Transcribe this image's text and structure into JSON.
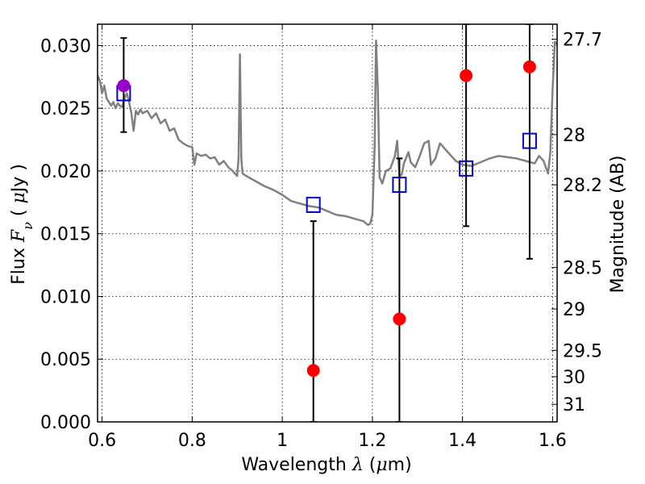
{
  "chart_data": {
    "type": "scatter",
    "xlabel": "Wavelength  λ (μm)",
    "ylabel": "Flux  Fν  ( μJy )",
    "ylabel_right": "Magnitude (AB)",
    "xlim": [
      0.59,
      1.61
    ],
    "ylim": [
      0.0,
      0.0317
    ],
    "x_ticks": [
      0.6,
      0.8,
      1.0,
      1.2,
      1.4,
      1.6
    ],
    "x_tick_labels": [
      "0.6",
      "0.8",
      "1",
      "1.2",
      "1.4",
      "1.6"
    ],
    "y_ticks": [
      0.0,
      0.005,
      0.01,
      0.015,
      0.02,
      0.025,
      0.03
    ],
    "y_tick_labels": [
      "0.000",
      "0.005",
      "0.010",
      "0.015",
      "0.020",
      "0.025",
      "0.030"
    ],
    "right_ticks": [
      {
        "label": "27.7",
        "flux": 0.0305
      },
      {
        "label": "28",
        "flux": 0.0229
      },
      {
        "label": "28.2",
        "flux": 0.0189
      },
      {
        "label": "28.5",
        "flux": 0.0123
      },
      {
        "label": "29",
        "flux": 0.009
      },
      {
        "label": "29.5",
        "flux": 0.0057
      },
      {
        "label": "30",
        "flux": 0.0036
      },
      {
        "label": "31",
        "flux": 0.0014
      }
    ],
    "grid": true,
    "colors": {
      "model": "#808080",
      "measured": "#ff0000",
      "model_points": "#0000cc",
      "highlight": "#9900cc",
      "errorbar": "#000000"
    },
    "series": [
      {
        "kind": "line",
        "points": [
          [
            0.59,
            0.0276
          ],
          [
            0.595,
            0.0272
          ],
          [
            0.6,
            0.0262
          ],
          [
            0.605,
            0.0268
          ],
          [
            0.61,
            0.0258
          ],
          [
            0.615,
            0.0255
          ],
          [
            0.62,
            0.0252
          ],
          [
            0.625,
            0.0255
          ],
          [
            0.63,
            0.025
          ],
          [
            0.635,
            0.0254
          ],
          [
            0.64,
            0.0252
          ],
          [
            0.645,
            0.0251
          ],
          [
            0.65,
            0.0258
          ],
          [
            0.655,
            0.0262
          ],
          [
            0.66,
            0.0255
          ],
          [
            0.665,
            0.0246
          ],
          [
            0.67,
            0.0232
          ],
          [
            0.675,
            0.0248
          ],
          [
            0.68,
            0.0245
          ],
          [
            0.685,
            0.0249
          ],
          [
            0.69,
            0.0246
          ],
          [
            0.7,
            0.0248
          ],
          [
            0.71,
            0.0242
          ],
          [
            0.72,
            0.0246
          ],
          [
            0.73,
            0.0238
          ],
          [
            0.74,
            0.0241
          ],
          [
            0.75,
            0.0232
          ],
          [
            0.76,
            0.0234
          ],
          [
            0.77,
            0.0225
          ],
          [
            0.78,
            0.0222
          ],
          [
            0.79,
            0.022
          ],
          [
            0.8,
            0.0219
          ],
          [
            0.805,
            0.0205
          ],
          [
            0.81,
            0.0214
          ],
          [
            0.82,
            0.0212
          ],
          [
            0.83,
            0.0213
          ],
          [
            0.84,
            0.021
          ],
          [
            0.85,
            0.0211
          ],
          [
            0.86,
            0.0205
          ],
          [
            0.87,
            0.0208
          ],
          [
            0.88,
            0.0203
          ],
          [
            0.89,
            0.02
          ],
          [
            0.9,
            0.0196
          ],
          [
            0.903,
            0.021
          ],
          [
            0.906,
            0.0293
          ],
          [
            0.909,
            0.021
          ],
          [
            0.912,
            0.0198
          ],
          [
            0.92,
            0.0196
          ],
          [
            0.94,
            0.0192
          ],
          [
            0.96,
            0.0188
          ],
          [
            0.98,
            0.0185
          ],
          [
            1.0,
            0.0181
          ],
          [
            1.02,
            0.0176
          ],
          [
            1.04,
            0.0174
          ],
          [
            1.06,
            0.0172
          ],
          [
            1.08,
            0.0171
          ],
          [
            1.1,
            0.0168
          ],
          [
            1.12,
            0.0165
          ],
          [
            1.14,
            0.0164
          ],
          [
            1.16,
            0.0162
          ],
          [
            1.18,
            0.016
          ],
          [
            1.19,
            0.0157
          ],
          [
            1.195,
            0.0158
          ],
          [
            1.2,
            0.0165
          ],
          [
            1.205,
            0.022
          ],
          [
            1.208,
            0.0304
          ],
          [
            1.212,
            0.0265
          ],
          [
            1.216,
            0.0195
          ],
          [
            1.222,
            0.019
          ],
          [
            1.23,
            0.02
          ],
          [
            1.24,
            0.0202
          ],
          [
            1.25,
            0.0212
          ],
          [
            1.255,
            0.0224
          ],
          [
            1.26,
            0.0196
          ],
          [
            1.265,
            0.0197
          ],
          [
            1.27,
            0.0206
          ],
          [
            1.28,
            0.0215
          ],
          [
            1.285,
            0.0207
          ],
          [
            1.295,
            0.0203
          ],
          [
            1.305,
            0.0212
          ],
          [
            1.315,
            0.0222
          ],
          [
            1.325,
            0.0224
          ],
          [
            1.33,
            0.0205
          ],
          [
            1.34,
            0.021
          ],
          [
            1.35,
            0.0222
          ],
          [
            1.36,
            0.0218
          ],
          [
            1.375,
            0.0212
          ],
          [
            1.385,
            0.0208
          ],
          [
            1.4,
            0.0205
          ],
          [
            1.42,
            0.0204
          ],
          [
            1.44,
            0.0207
          ],
          [
            1.46,
            0.021
          ],
          [
            1.48,
            0.0212
          ],
          [
            1.5,
            0.0211
          ],
          [
            1.52,
            0.021
          ],
          [
            1.54,
            0.0208
          ],
          [
            1.56,
            0.0206
          ],
          [
            1.57,
            0.0212
          ],
          [
            1.58,
            0.0208
          ],
          [
            1.59,
            0.0198
          ],
          [
            1.595,
            0.0215
          ],
          [
            1.6,
            0.0265
          ],
          [
            1.605,
            0.0303
          ],
          [
            1.61,
            0.0301
          ]
        ]
      },
      {
        "kind": "model_points",
        "x": [
          0.648,
          1.069,
          1.26,
          1.408,
          1.549
        ],
        "y": [
          0.0262,
          0.0173,
          0.0189,
          0.0202,
          0.0224
        ]
      },
      {
        "kind": "measured",
        "x": [
          0.648,
          1.069,
          1.26,
          1.408,
          1.549
        ],
        "y": [
          0.0268,
          0.0041,
          0.0082,
          0.0276,
          0.0283
        ],
        "err_low": [
          0.0231,
          0.0,
          0.0,
          0.0156,
          0.013
        ],
        "err_high": [
          0.0306,
          0.016,
          0.021,
          0.0317,
          0.0317
        ],
        "highlight_index": 0
      }
    ]
  }
}
